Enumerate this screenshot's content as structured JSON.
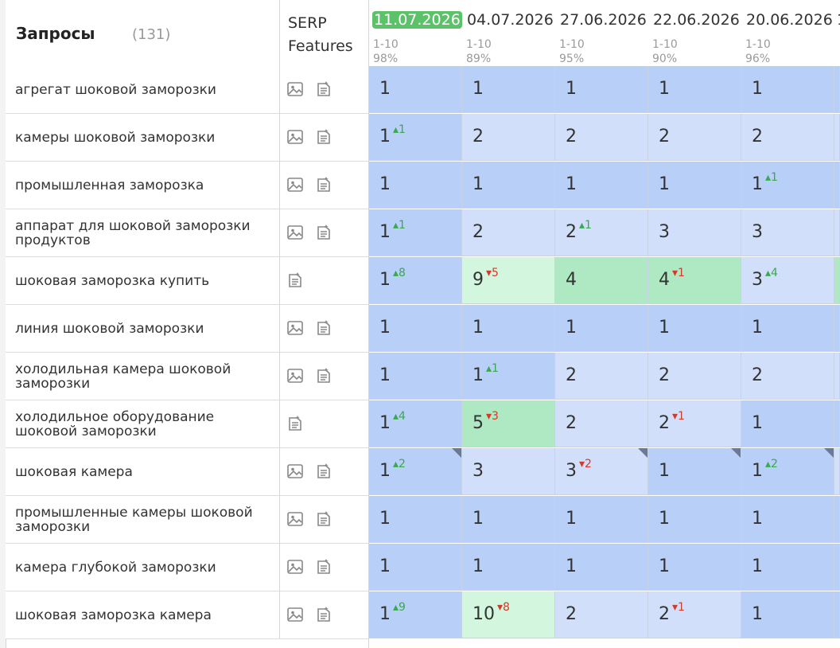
{
  "header": {
    "queries_label": "Запросы",
    "queries_count": "(131)",
    "serp_line1": "SERP",
    "serp_line2": "Features",
    "stub_date": "1"
  },
  "dates": [
    {
      "date": "11.07.2026",
      "range": "1-10",
      "pct": "98%",
      "active": true
    },
    {
      "date": "04.07.2026",
      "range": "1-10",
      "pct": "89%",
      "active": false
    },
    {
      "date": "27.06.2026",
      "range": "1-10",
      "pct": "95%",
      "active": false
    },
    {
      "date": "22.06.2026",
      "range": "1-10",
      "pct": "90%",
      "active": false
    },
    {
      "date": "20.06.2026",
      "range": "1-10",
      "pct": "96%",
      "active": false
    }
  ],
  "colors": {
    "blue_dark": "#b8cff7",
    "blue_light": "#d2dffa",
    "green_light": "#d2f7de",
    "green_mid": "#aee9c3",
    "green_accent": "#5cc26a",
    "up": "#3aa84f",
    "down": "#d23a2a"
  },
  "rows": [
    {
      "query": "агрегат шоковой заморозки",
      "icons": [
        "image-icon",
        "featured-snippet-icon"
      ],
      "cells": [
        {
          "v": "1",
          "d": "",
          "dir": "",
          "bg": "blue_dark"
        },
        {
          "v": "1",
          "d": "",
          "dir": "",
          "bg": "blue_dark"
        },
        {
          "v": "1",
          "d": "",
          "dir": "",
          "bg": "blue_dark"
        },
        {
          "v": "1",
          "d": "",
          "dir": "",
          "bg": "blue_dark"
        },
        {
          "v": "1",
          "d": "",
          "dir": "",
          "bg": "blue_dark"
        }
      ],
      "stub": "blue_dark"
    },
    {
      "query": "камеры шоковой заморозки",
      "icons": [
        "image-icon",
        "featured-snippet-icon"
      ],
      "cells": [
        {
          "v": "1",
          "d": "1",
          "dir": "up",
          "bg": "blue_dark"
        },
        {
          "v": "2",
          "d": "",
          "dir": "",
          "bg": "blue_light"
        },
        {
          "v": "2",
          "d": "",
          "dir": "",
          "bg": "blue_light"
        },
        {
          "v": "2",
          "d": "",
          "dir": "",
          "bg": "blue_light"
        },
        {
          "v": "2",
          "d": "",
          "dir": "",
          "bg": "blue_light"
        }
      ],
      "stub": "blue_light"
    },
    {
      "query": "промышленная заморозка",
      "icons": [
        "image-icon",
        "featured-snippet-icon"
      ],
      "cells": [
        {
          "v": "1",
          "d": "",
          "dir": "",
          "bg": "blue_dark"
        },
        {
          "v": "1",
          "d": "",
          "dir": "",
          "bg": "blue_dark"
        },
        {
          "v": "1",
          "d": "",
          "dir": "",
          "bg": "blue_dark"
        },
        {
          "v": "1",
          "d": "",
          "dir": "",
          "bg": "blue_dark"
        },
        {
          "v": "1",
          "d": "1",
          "dir": "up",
          "bg": "blue_dark"
        }
      ],
      "stub": "blue_dark"
    },
    {
      "query": "аппарат для шоковой заморозки продуктов",
      "icons": [
        "image-icon",
        "featured-snippet-icon"
      ],
      "cells": [
        {
          "v": "1",
          "d": "1",
          "dir": "up",
          "bg": "blue_dark"
        },
        {
          "v": "2",
          "d": "",
          "dir": "",
          "bg": "blue_light"
        },
        {
          "v": "2",
          "d": "1",
          "dir": "up",
          "bg": "blue_light"
        },
        {
          "v": "3",
          "d": "",
          "dir": "",
          "bg": "blue_light"
        },
        {
          "v": "3",
          "d": "",
          "dir": "",
          "bg": "blue_light"
        }
      ],
      "stub": "blue_light"
    },
    {
      "query": "шоковая заморозка купить",
      "icons": [
        "featured-snippet-icon"
      ],
      "cells": [
        {
          "v": "1",
          "d": "8",
          "dir": "up",
          "bg": "blue_dark"
        },
        {
          "v": "9",
          "d": "5",
          "dir": "down",
          "bg": "green_light"
        },
        {
          "v": "4",
          "d": "",
          "dir": "",
          "bg": "green_mid"
        },
        {
          "v": "4",
          "d": "1",
          "dir": "down",
          "bg": "green_mid"
        },
        {
          "v": "3",
          "d": "4",
          "dir": "up",
          "bg": "blue_light"
        }
      ],
      "stub": "green_mid"
    },
    {
      "query": "линия шоковой заморозки",
      "icons": [
        "image-icon",
        "featured-snippet-icon"
      ],
      "cells": [
        {
          "v": "1",
          "d": "",
          "dir": "",
          "bg": "blue_dark"
        },
        {
          "v": "1",
          "d": "",
          "dir": "",
          "bg": "blue_dark"
        },
        {
          "v": "1",
          "d": "",
          "dir": "",
          "bg": "blue_dark"
        },
        {
          "v": "1",
          "d": "",
          "dir": "",
          "bg": "blue_dark"
        },
        {
          "v": "1",
          "d": "",
          "dir": "",
          "bg": "blue_dark"
        }
      ],
      "stub": "blue_dark"
    },
    {
      "query": "холодильная камера шоковой заморозки",
      "icons": [
        "image-icon",
        "featured-snippet-icon"
      ],
      "cells": [
        {
          "v": "1",
          "d": "",
          "dir": "",
          "bg": "blue_dark"
        },
        {
          "v": "1",
          "d": "1",
          "dir": "up",
          "bg": "blue_dark"
        },
        {
          "v": "2",
          "d": "",
          "dir": "",
          "bg": "blue_light"
        },
        {
          "v": "2",
          "d": "",
          "dir": "",
          "bg": "blue_light"
        },
        {
          "v": "2",
          "d": "",
          "dir": "",
          "bg": "blue_light"
        }
      ],
      "stub": "blue_light"
    },
    {
      "query": "холодильное оборудование шоковой заморозки",
      "icons": [
        "featured-snippet-icon"
      ],
      "cells": [
        {
          "v": "1",
          "d": "4",
          "dir": "up",
          "bg": "blue_dark"
        },
        {
          "v": "5",
          "d": "3",
          "dir": "down",
          "bg": "green_mid"
        },
        {
          "v": "2",
          "d": "",
          "dir": "",
          "bg": "blue_light"
        },
        {
          "v": "2",
          "d": "1",
          "dir": "down",
          "bg": "blue_light"
        },
        {
          "v": "1",
          "d": "",
          "dir": "",
          "bg": "blue_dark"
        }
      ],
      "stub": "blue_dark"
    },
    {
      "query": "шоковая камера",
      "icons": [
        "image-icon",
        "featured-snippet-icon"
      ],
      "cells": [
        {
          "v": "1",
          "d": "2",
          "dir": "up",
          "bg": "blue_dark",
          "mark": true
        },
        {
          "v": "3",
          "d": "",
          "dir": "",
          "bg": "blue_light"
        },
        {
          "v": "3",
          "d": "2",
          "dir": "down",
          "bg": "blue_light",
          "mark": true
        },
        {
          "v": "1",
          "d": "",
          "dir": "",
          "bg": "blue_dark",
          "mark": true
        },
        {
          "v": "1",
          "d": "2",
          "dir": "up",
          "bg": "blue_dark",
          "mark": true
        }
      ],
      "stub": "blue_light"
    },
    {
      "query": "промышленные камеры шоковой заморозки",
      "icons": [
        "image-icon",
        "featured-snippet-icon"
      ],
      "cells": [
        {
          "v": "1",
          "d": "",
          "dir": "",
          "bg": "blue_dark"
        },
        {
          "v": "1",
          "d": "",
          "dir": "",
          "bg": "blue_dark"
        },
        {
          "v": "1",
          "d": "",
          "dir": "",
          "bg": "blue_dark"
        },
        {
          "v": "1",
          "d": "",
          "dir": "",
          "bg": "blue_dark"
        },
        {
          "v": "1",
          "d": "",
          "dir": "",
          "bg": "blue_dark"
        }
      ],
      "stub": "blue_dark"
    },
    {
      "query": "камера глубокой заморозки",
      "icons": [
        "image-icon",
        "featured-snippet-icon"
      ],
      "cells": [
        {
          "v": "1",
          "d": "",
          "dir": "",
          "bg": "blue_dark"
        },
        {
          "v": "1",
          "d": "",
          "dir": "",
          "bg": "blue_dark"
        },
        {
          "v": "1",
          "d": "",
          "dir": "",
          "bg": "blue_dark"
        },
        {
          "v": "1",
          "d": "",
          "dir": "",
          "bg": "blue_dark"
        },
        {
          "v": "1",
          "d": "",
          "dir": "",
          "bg": "blue_dark"
        }
      ],
      "stub": "blue_dark"
    },
    {
      "query": "шоковая заморозка камера",
      "icons": [
        "image-icon",
        "featured-snippet-icon"
      ],
      "cells": [
        {
          "v": "1",
          "d": "9",
          "dir": "up",
          "bg": "blue_dark"
        },
        {
          "v": "10",
          "d": "8",
          "dir": "down",
          "bg": "green_light"
        },
        {
          "v": "2",
          "d": "",
          "dir": "",
          "bg": "blue_light"
        },
        {
          "v": "2",
          "d": "1",
          "dir": "down",
          "bg": "blue_light"
        },
        {
          "v": "1",
          "d": "",
          "dir": "",
          "bg": "blue_dark"
        }
      ],
      "stub": "blue_dark"
    }
  ]
}
